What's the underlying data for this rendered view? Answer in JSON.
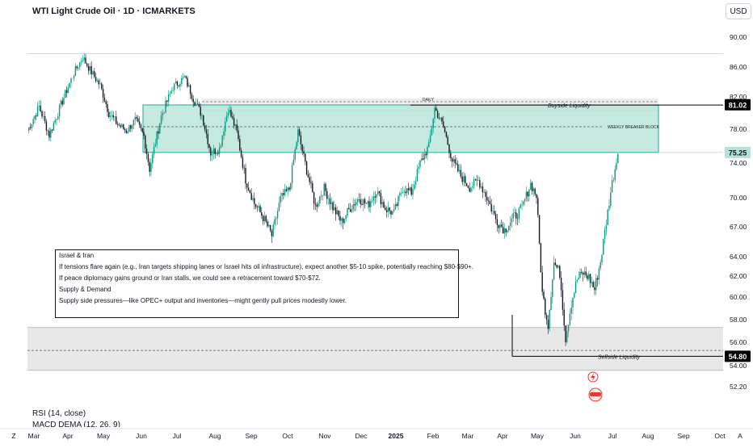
{
  "header": {
    "title": "WTI Light Crude Oil · 1D · ICMARKETS",
    "currency": "USD"
  },
  "colors": {
    "up": "#089981",
    "down": "#131722",
    "zone_fill": "#b2e3d6",
    "zone_border": "#26a69a",
    "gray_zone": "#e8e8e8",
    "black_label": "#000000",
    "ref_line": "#9598a1",
    "icon_red": "#e53935"
  },
  "note": {
    "heading1": "Israel & Iran",
    "line1": "If tensions flare again (e.g., Iran targets shipping lanes or Israel hits oil infrastructure), expect another $5-10 spike, potentially reaching $80-$90+.",
    "line2": "If peace diplomacy gains ground or Iran stalls, we could see a retracement toward $70-$72.",
    "heading2": "Supply & Demand",
    "line3": "Supply side pressures—like OPEC+ output and inventories—might gently pull prices modestly lower."
  },
  "annotations": {
    "daily": "DAILY",
    "buyside": "Buyside Liquidity",
    "weekly_breaker": "WEEKLY BREAKER BLOCK",
    "sellside": "Sellside Liquidity"
  },
  "panes": {
    "rsi": "RSI (14, close)",
    "macd": "MACD DEMA (12, 26, 9)"
  },
  "chart_data": {
    "type": "candlestick",
    "ylim": [
      50.5,
      91.5
    ],
    "y_axis_labels": [
      90.0,
      86.0,
      82.0,
      78.0,
      74.0,
      70.0,
      67.0,
      64.0,
      62.0,
      60.0,
      58.0,
      56.0,
      54.0,
      52.2
    ],
    "x_axis_labels": [
      "Z",
      "Mar",
      "Apr",
      "May",
      "Jun",
      "Jul",
      "Aug",
      "Sep",
      "Oct",
      "Nov",
      "Dec",
      "2025",
      "Feb",
      "Mar",
      "Apr",
      "May",
      "Jun",
      "Jul",
      "Aug",
      "Sep",
      "Oct",
      "A"
    ],
    "price_labels": {
      "top": "81.02",
      "mid": "75.25",
      "bottom": "54.80"
    },
    "levels": {
      "buyside": 81.02,
      "breaker_top": 81.0,
      "breaker_bottom": 75.25,
      "weekly_breaker": 78.3,
      "daily": 81.4,
      "upper_gray_top": 81.8,
      "ref_top": 87.8,
      "gray_zone_top": 57.3,
      "gray_zone_bottom": 53.6,
      "gray_zone_dash": 55.3,
      "sellside": 54.8
    },
    "anchor_points": [
      [
        0,
        77.8
      ],
      [
        8,
        80.8
      ],
      [
        15,
        77.3
      ],
      [
        26,
        82.4
      ],
      [
        32,
        85.2
      ],
      [
        38,
        87.3
      ],
      [
        44,
        85.3
      ],
      [
        50,
        83.5
      ],
      [
        56,
        80.0
      ],
      [
        62,
        78.6
      ],
      [
        68,
        77.8
      ],
      [
        74,
        79.1
      ],
      [
        80,
        77.2
      ],
      [
        84,
        73.3
      ],
      [
        92,
        79.6
      ],
      [
        100,
        83.3
      ],
      [
        108,
        84.6
      ],
      [
        114,
        81.8
      ],
      [
        120,
        79.7
      ],
      [
        126,
        75.2
      ],
      [
        132,
        75.7
      ],
      [
        138,
        80.6
      ],
      [
        144,
        77.6
      ],
      [
        150,
        72.1
      ],
      [
        156,
        69.4
      ],
      [
        162,
        68.0
      ],
      [
        168,
        66.1
      ],
      [
        174,
        69.9
      ],
      [
        180,
        71.0
      ],
      [
        186,
        77.7
      ],
      [
        192,
        73.2
      ],
      [
        198,
        69.1
      ],
      [
        204,
        71.1
      ],
      [
        210,
        69.0
      ],
      [
        216,
        67.5
      ],
      [
        222,
        69.0
      ],
      [
        228,
        70.0
      ],
      [
        234,
        69.2
      ],
      [
        240,
        70.8
      ],
      [
        246,
        68.9
      ],
      [
        252,
        68.4
      ],
      [
        258,
        71.1
      ],
      [
        264,
        70.6
      ],
      [
        270,
        74.0
      ],
      [
        276,
        76.0
      ],
      [
        280,
        80.6
      ],
      [
        286,
        78.3
      ],
      [
        292,
        74.3
      ],
      [
        298,
        72.5
      ],
      [
        304,
        71.2
      ],
      [
        310,
        72.0
      ],
      [
        316,
        70.0
      ],
      [
        322,
        67.8
      ],
      [
        328,
        66.7
      ],
      [
        334,
        67.9
      ],
      [
        340,
        68.9
      ],
      [
        346,
        71.6
      ],
      [
        350,
        70.2
      ],
      [
        354,
        60.3
      ],
      [
        358,
        57.6
      ],
      [
        362,
        63.4
      ],
      [
        366,
        62.3
      ],
      [
        370,
        56.4
      ],
      [
        374,
        59.5
      ],
      [
        378,
        61.7
      ],
      [
        382,
        62.3
      ],
      [
        386,
        61.9
      ],
      [
        390,
        60.7
      ],
      [
        394,
        63.5
      ],
      [
        398,
        67.5
      ],
      [
        402,
        71.7
      ],
      [
        406,
        75.1
      ]
    ]
  }
}
